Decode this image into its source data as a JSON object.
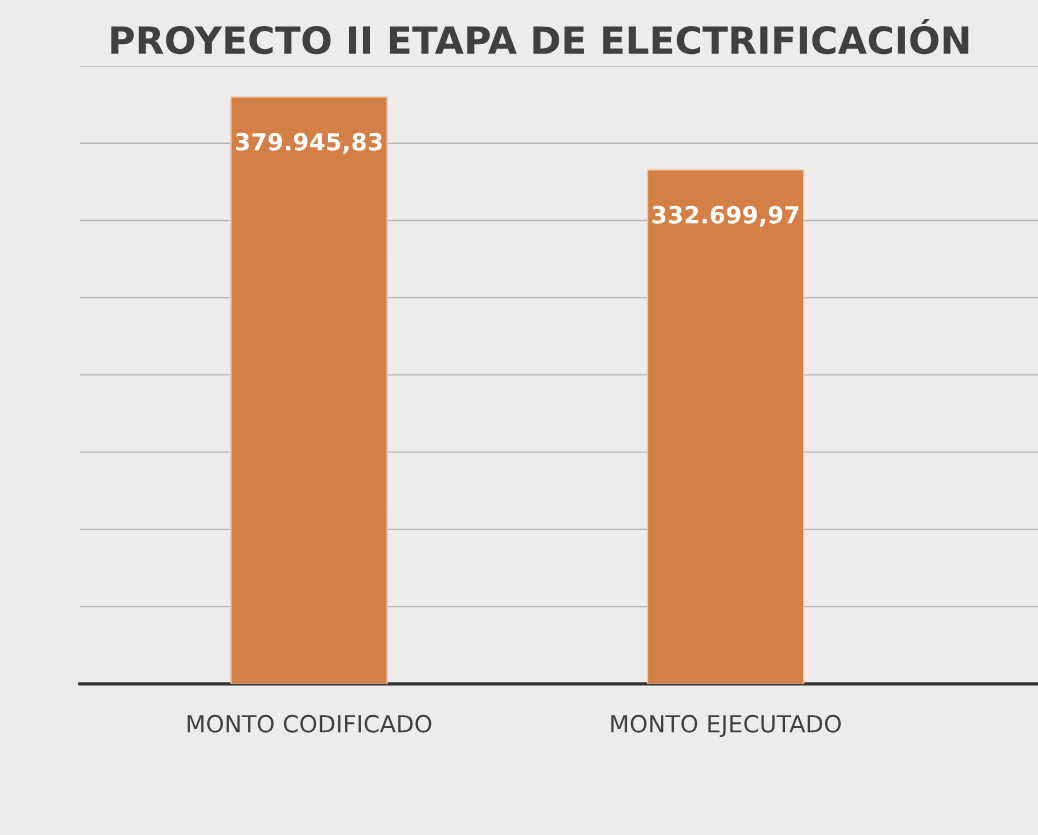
{
  "chart_data": {
    "type": "bar",
    "title": "PROYECTO II ETAPA DE ELECTRIFICACIÓN",
    "categories": [
      "MONTO CODIFICADO",
      "MONTO EJECUTADO"
    ],
    "values": [
      379945.83,
      332699.97
    ],
    "value_labels": [
      "379.945,83",
      "332.699,97"
    ],
    "color": "#d47f45",
    "ylim": [
      0,
      400000
    ],
    "yticks": [
      {
        "value": 0,
        "label": null
      },
      {
        "value": 50000,
        "label": null
      },
      {
        "value": 100000,
        "label": null
      },
      {
        "value": 150000,
        "label": null
      },
      {
        "value": 200000,
        "label": null
      },
      {
        "value": 250000,
        "label": null
      },
      {
        "value": 300000,
        "label": null
      },
      {
        "value": 350000,
        "label": null
      },
      {
        "value": 400000,
        "label": null
      }
    ],
    "grid": "y",
    "tick_labels": "x"
  }
}
